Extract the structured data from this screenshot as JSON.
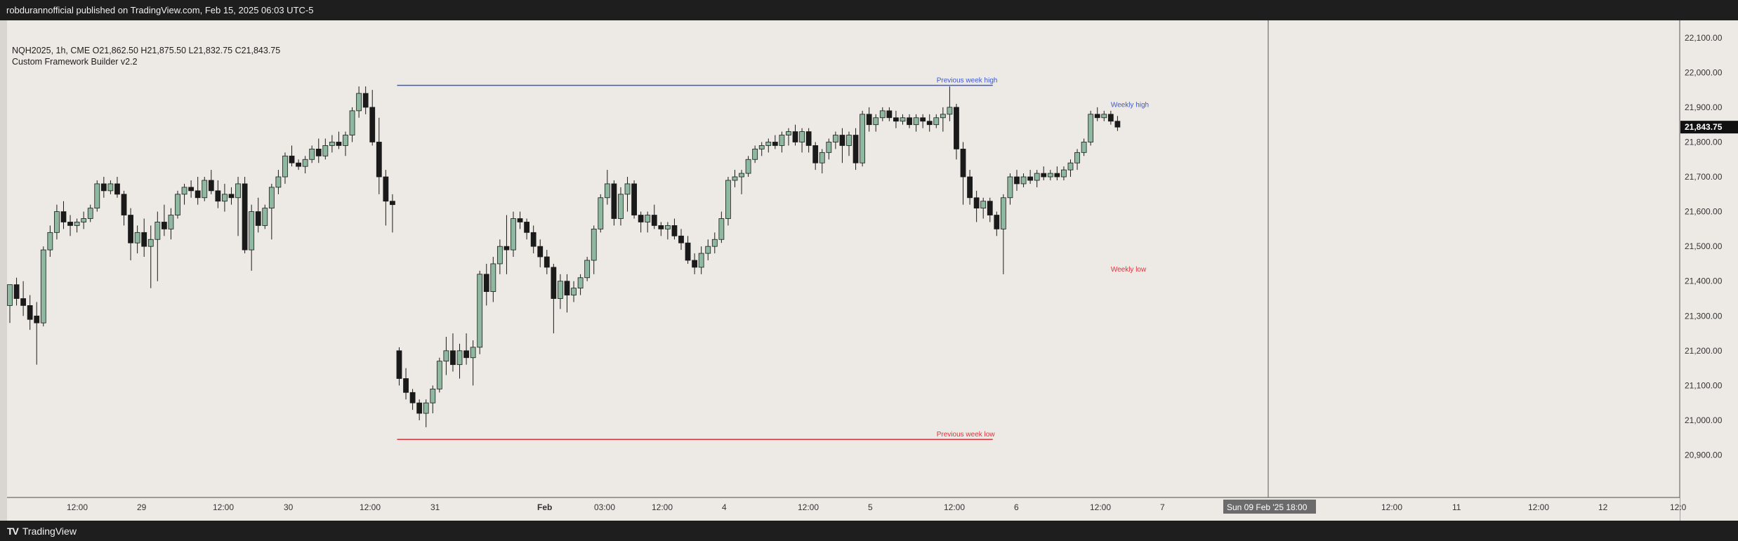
{
  "header": {
    "published_line": "robdurannofficial published on TradingView.com, Feb 15, 2025 06:03 UTC-5"
  },
  "legend": {
    "symbol_line": "NQH2025, 1h, CME  O21,862.50  H21,875.50  L21,832.75  C21,843.75",
    "indicator_line": "Custom Framework Builder v2.2"
  },
  "footer": {
    "logo_mark": "TV",
    "brand": "TradingView"
  },
  "colors": {
    "background": "#edeae5",
    "up_candle": "#8fb8a0",
    "down_candle": "#1a1a1a",
    "wick": "#1a1a1a",
    "prev_week_high": "#3b57d6",
    "prev_week_low": "#e0303a",
    "weekly_high": "#3b57d6",
    "weekly_low": "#e0303a",
    "price_tag": "#111111"
  },
  "chart_data": {
    "type": "candlestick",
    "title": "",
    "xlabel": "",
    "ylabel": "",
    "ylim": [
      20780,
      22150
    ],
    "y_ticks": [
      20900,
      21000,
      21100,
      21200,
      21300,
      21400,
      21500,
      21600,
      21700,
      21800,
      21900,
      22000,
      22100
    ],
    "y_tick_labels": [
      "20,900.00",
      "21,000.00",
      "21,100.00",
      "21,200.00",
      "21,300.00",
      "21,400.00",
      "21,500.00",
      "21,600.00",
      "21,700.00",
      "21,800.00",
      "21,900.00",
      "22,000.00",
      "22,100.00"
    ],
    "x_ticks": [
      "12:00",
      "29",
      "12:00",
      "30",
      "12:00",
      "31",
      "Feb",
      "03:00",
      "12:00",
      "4",
      "12:00",
      "5",
      "12:00",
      "6",
      "12:00",
      "7",
      "Sun 09 Feb '25   18:00",
      "12:00",
      "11",
      "12:00",
      "12",
      "12:0"
    ],
    "current_price_label": "21,843.75",
    "grid": false,
    "candles": [
      [
        21330,
        21390,
        21280,
        21390
      ],
      [
        21390,
        21410,
        21330,
        21350
      ],
      [
        21350,
        21400,
        21300,
        21330
      ],
      [
        21330,
        21360,
        21260,
        21290
      ],
      [
        21300,
        21340,
        21160,
        21280
      ],
      [
        21280,
        21500,
        21270,
        21490
      ],
      [
        21490,
        21560,
        21470,
        21540
      ],
      [
        21540,
        21620,
        21520,
        21600
      ],
      [
        21600,
        21630,
        21550,
        21570
      ],
      [
        21570,
        21590,
        21530,
        21560
      ],
      [
        21560,
        21580,
        21540,
        21570
      ],
      [
        21570,
        21600,
        21550,
        21580
      ],
      [
        21580,
        21620,
        21570,
        21610
      ],
      [
        21610,
        21690,
        21600,
        21680
      ],
      [
        21680,
        21700,
        21640,
        21660
      ],
      [
        21660,
        21690,
        21650,
        21680
      ],
      [
        21680,
        21700,
        21640,
        21650
      ],
      [
        21650,
        21660,
        21560,
        21590
      ],
      [
        21590,
        21610,
        21460,
        21510
      ],
      [
        21510,
        21560,
        21480,
        21540
      ],
      [
        21540,
        21580,
        21470,
        21500
      ],
      [
        21500,
        21560,
        21380,
        21520
      ],
      [
        21520,
        21600,
        21400,
        21570
      ],
      [
        21570,
        21620,
        21530,
        21550
      ],
      [
        21550,
        21610,
        21520,
        21590
      ],
      [
        21590,
        21660,
        21580,
        21650
      ],
      [
        21650,
        21680,
        21620,
        21670
      ],
      [
        21670,
        21690,
        21640,
        21660
      ],
      [
        21660,
        21700,
        21620,
        21640
      ],
      [
        21640,
        21700,
        21630,
        21690
      ],
      [
        21690,
        21720,
        21650,
        21660
      ],
      [
        21660,
        21690,
        21610,
        21630
      ],
      [
        21630,
        21680,
        21600,
        21650
      ],
      [
        21650,
        21670,
        21620,
        21640
      ],
      [
        21640,
        21700,
        21530,
        21680
      ],
      [
        21680,
        21700,
        21480,
        21490
      ],
      [
        21490,
        21620,
        21430,
        21600
      ],
      [
        21600,
        21640,
        21540,
        21560
      ],
      [
        21560,
        21620,
        21550,
        21610
      ],
      [
        21610,
        21680,
        21520,
        21670
      ],
      [
        21670,
        21720,
        21650,
        21700
      ],
      [
        21700,
        21770,
        21680,
        21760
      ],
      [
        21760,
        21790,
        21730,
        21740
      ],
      [
        21740,
        21750,
        21720,
        21730
      ],
      [
        21730,
        21760,
        21710,
        21750
      ],
      [
        21750,
        21790,
        21740,
        21780
      ],
      [
        21780,
        21810,
        21740,
        21760
      ],
      [
        21760,
        21810,
        21750,
        21790
      ],
      [
        21790,
        21820,
        21770,
        21800
      ],
      [
        21800,
        21830,
        21780,
        21790
      ],
      [
        21790,
        21830,
        21760,
        21820
      ],
      [
        21820,
        21900,
        21800,
        21890
      ],
      [
        21890,
        21960,
        21870,
        21940
      ],
      [
        21940,
        21960,
        21880,
        21900
      ],
      [
        21900,
        21950,
        21790,
        21800
      ],
      [
        21800,
        21870,
        21650,
        21700
      ],
      [
        21700,
        21720,
        21560,
        21630
      ],
      [
        21630,
        21650,
        21540,
        21620
      ],
      [
        21200,
        21210,
        21100,
        21120
      ],
      [
        21120,
        21150,
        21060,
        21080
      ],
      [
        21080,
        21090,
        21030,
        21050
      ],
      [
        21050,
        21060,
        21000,
        21020
      ],
      [
        21020,
        21060,
        20980,
        21050
      ],
      [
        21050,
        21100,
        21020,
        21090
      ],
      [
        21090,
        21180,
        21080,
        21170
      ],
      [
        21170,
        21240,
        21130,
        21200
      ],
      [
        21200,
        21250,
        21140,
        21160
      ],
      [
        21160,
        21220,
        21120,
        21200
      ],
      [
        21200,
        21250,
        21160,
        21180
      ],
      [
        21180,
        21230,
        21100,
        21210
      ],
      [
        21210,
        21430,
        21190,
        21420
      ],
      [
        21420,
        21450,
        21330,
        21370
      ],
      [
        21370,
        21470,
        21340,
        21450
      ],
      [
        21450,
        21520,
        21420,
        21500
      ],
      [
        21500,
        21590,
        21420,
        21490
      ],
      [
        21490,
        21600,
        21470,
        21580
      ],
      [
        21580,
        21600,
        21550,
        21570
      ],
      [
        21570,
        21580,
        21520,
        21540
      ],
      [
        21540,
        21560,
        21480,
        21500
      ],
      [
        21500,
        21520,
        21440,
        21470
      ],
      [
        21470,
        21490,
        21420,
        21440
      ],
      [
        21440,
        21450,
        21250,
        21350
      ],
      [
        21350,
        21420,
        21320,
        21400
      ],
      [
        21400,
        21420,
        21310,
        21360
      ],
      [
        21360,
        21400,
        21340,
        21380
      ],
      [
        21380,
        21420,
        21360,
        21410
      ],
      [
        21410,
        21470,
        21400,
        21460
      ],
      [
        21460,
        21560,
        21420,
        21550
      ],
      [
        21550,
        21650,
        21540,
        21640
      ],
      [
        21640,
        21720,
        21620,
        21680
      ],
      [
        21680,
        21690,
        21560,
        21580
      ],
      [
        21580,
        21670,
        21560,
        21650
      ],
      [
        21650,
        21700,
        21600,
        21680
      ],
      [
        21680,
        21690,
        21580,
        21590
      ],
      [
        21590,
        21600,
        21540,
        21570
      ],
      [
        21570,
        21600,
        21540,
        21590
      ],
      [
        21590,
        21620,
        21550,
        21560
      ],
      [
        21560,
        21570,
        21530,
        21550
      ],
      [
        21550,
        21570,
        21520,
        21560
      ],
      [
        21560,
        21580,
        21520,
        21530
      ],
      [
        21530,
        21550,
        21490,
        21510
      ],
      [
        21510,
        21530,
        21450,
        21460
      ],
      [
        21460,
        21480,
        21420,
        21440
      ],
      [
        21440,
        21500,
        21420,
        21480
      ],
      [
        21480,
        21520,
        21460,
        21500
      ],
      [
        21500,
        21540,
        21480,
        21520
      ],
      [
        21520,
        21600,
        21510,
        21580
      ],
      [
        21580,
        21700,
        21560,
        21690
      ],
      [
        21690,
        21720,
        21670,
        21700
      ],
      [
        21700,
        21720,
        21650,
        21710
      ],
      [
        21710,
        21760,
        21700,
        21750
      ],
      [
        21750,
        21790,
        21740,
        21780
      ],
      [
        21780,
        21800,
        21760,
        21790
      ],
      [
        21790,
        21810,
        21770,
        21800
      ],
      [
        21800,
        21820,
        21780,
        21790
      ],
      [
        21790,
        21830,
        21770,
        21820
      ],
      [
        21820,
        21840,
        21790,
        21830
      ],
      [
        21830,
        21850,
        21790,
        21800
      ],
      [
        21800,
        21840,
        21770,
        21830
      ],
      [
        21830,
        21840,
        21770,
        21790
      ],
      [
        21790,
        21800,
        21720,
        21740
      ],
      [
        21740,
        21780,
        21710,
        21770
      ],
      [
        21770,
        21810,
        21750,
        21800
      ],
      [
        21800,
        21830,
        21780,
        21820
      ],
      [
        21820,
        21840,
        21740,
        21790
      ],
      [
        21790,
        21830,
        21760,
        21820
      ],
      [
        21820,
        21840,
        21720,
        21740
      ],
      [
        21740,
        21890,
        21730,
        21880
      ],
      [
        21880,
        21900,
        21830,
        21850
      ],
      [
        21850,
        21880,
        21830,
        21870
      ],
      [
        21870,
        21900,
        21860,
        21890
      ],
      [
        21890,
        21900,
        21860,
        21870
      ],
      [
        21870,
        21890,
        21840,
        21860
      ],
      [
        21860,
        21880,
        21850,
        21870
      ],
      [
        21870,
        21880,
        21840,
        21850
      ],
      [
        21850,
        21880,
        21830,
        21870
      ],
      [
        21870,
        21880,
        21840,
        21860
      ],
      [
        21860,
        21880,
        21830,
        21850
      ],
      [
        21850,
        21880,
        21840,
        21870
      ],
      [
        21870,
        21900,
        21830,
        21880
      ],
      [
        21880,
        21960,
        21860,
        21900
      ],
      [
        21900,
        21910,
        21750,
        21780
      ],
      [
        21780,
        21800,
        21620,
        21700
      ],
      [
        21700,
        21720,
        21620,
        21640
      ],
      [
        21640,
        21660,
        21570,
        21610
      ],
      [
        21610,
        21640,
        21580,
        21630
      ],
      [
        21630,
        21640,
        21570,
        21590
      ],
      [
        21590,
        21600,
        21530,
        21550
      ],
      [
        21550,
        21650,
        21420,
        21640
      ],
      [
        21640,
        21710,
        21620,
        21700
      ],
      [
        21700,
        21720,
        21660,
        21680
      ],
      [
        21680,
        21710,
        21670,
        21700
      ],
      [
        21700,
        21720,
        21680,
        21690
      ],
      [
        21690,
        21720,
        21670,
        21710
      ],
      [
        21710,
        21730,
        21690,
        21700
      ],
      [
        21700,
        21720,
        21690,
        21710
      ],
      [
        21710,
        21730,
        21690,
        21700
      ],
      [
        21700,
        21730,
        21690,
        21720
      ],
      [
        21720,
        21750,
        21700,
        21740
      ],
      [
        21740,
        21780,
        21720,
        21770
      ],
      [
        21770,
        21810,
        21760,
        21800
      ],
      [
        21800,
        21890,
        21790,
        21880
      ],
      [
        21880,
        21900,
        21860,
        21870
      ],
      [
        21870,
        21890,
        21860,
        21880
      ],
      [
        21880,
        21890,
        21850,
        21860
      ],
      [
        21860,
        21875,
        21832,
        21843
      ]
    ],
    "levels": [
      {
        "label": "Previous week high",
        "price": 21963,
        "from_index": 58,
        "to_index": 146
      },
      {
        "label": "Previous week low",
        "price": 20945,
        "from_index": 58,
        "to_index": 146
      },
      {
        "label": "Weekly high",
        "price": 21893,
        "from_index": 164,
        "to_index": 166
      },
      {
        "label": "Weekly low",
        "price": 21420,
        "from_index": 164,
        "to_index": 166
      }
    ]
  }
}
